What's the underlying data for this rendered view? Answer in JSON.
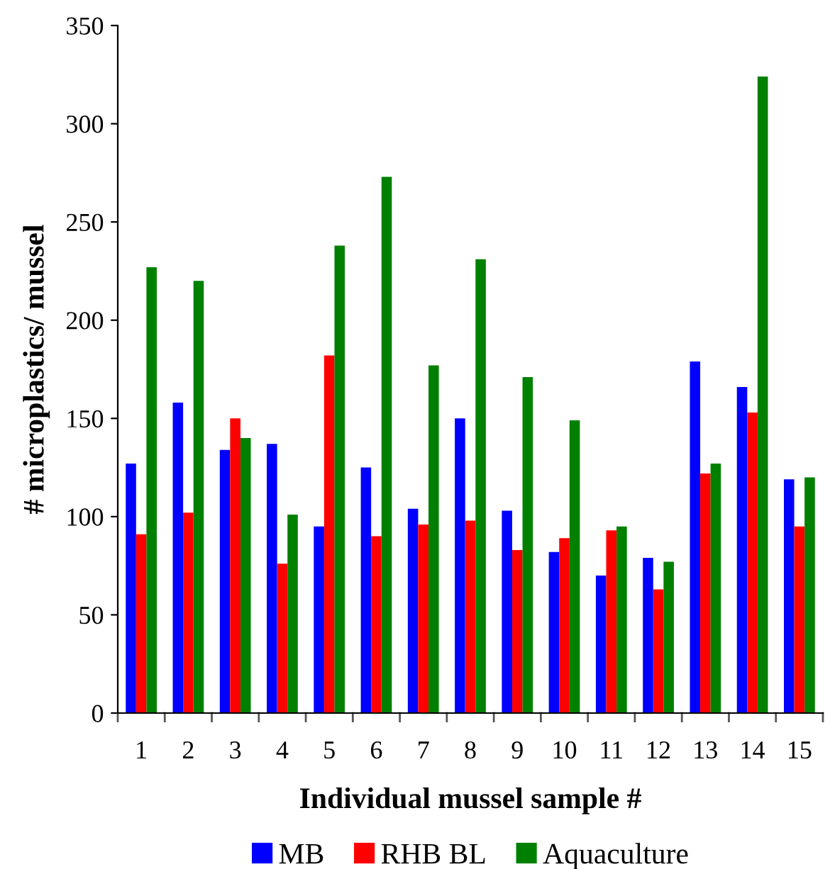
{
  "chart_data": {
    "type": "bar",
    "xlabel": "Individual mussel sample #",
    "ylabel": "# microplastics/ mussel",
    "categories": [
      "1",
      "2",
      "3",
      "4",
      "5",
      "6",
      "7",
      "8",
      "9",
      "10",
      "11",
      "12",
      "13",
      "14",
      "15"
    ],
    "series": [
      {
        "name": "MB",
        "color": "#0000ff",
        "values": [
          127,
          158,
          134,
          137,
          95,
          125,
          104,
          150,
          103,
          82,
          70,
          79,
          179,
          166,
          119
        ]
      },
      {
        "name": "RHB BL",
        "color": "#ff0000",
        "values": [
          91,
          102,
          150,
          76,
          182,
          90,
          96,
          98,
          83,
          89,
          93,
          63,
          122,
          153,
          95
        ]
      },
      {
        "name": "Aquaculture",
        "color": "#008000",
        "values": [
          227,
          220,
          140,
          101,
          238,
          273,
          177,
          231,
          171,
          149,
          95,
          77,
          127,
          324,
          120
        ]
      }
    ],
    "ylim": [
      0,
      350
    ],
    "yticks": [
      0,
      50,
      100,
      150,
      200,
      250,
      300,
      350
    ],
    "grid": false,
    "legend": "bottom"
  }
}
